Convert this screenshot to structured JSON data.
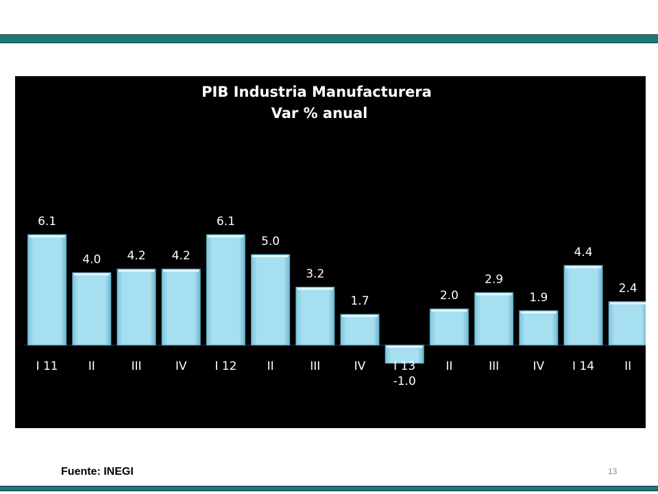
{
  "slide": {
    "source_label": "Fuente: INEGI",
    "page_number": "13"
  },
  "colors": {
    "accent_bar": "#1f7777",
    "chart_background": "#000000",
    "bar_fill": "#a6dff0",
    "text": "#ffffff"
  },
  "chart_data": {
    "type": "bar",
    "title": "PIB Industria Manufacturera",
    "subtitle": "Var % anual",
    "categories": [
      "I 11",
      "II",
      "III",
      "IV",
      "I 12",
      "II",
      "III",
      "IV",
      "I 13",
      "II",
      "III",
      "IV",
      "I 14",
      "II"
    ],
    "values": [
      6.1,
      4.0,
      4.2,
      4.2,
      6.1,
      5.0,
      3.2,
      1.7,
      -1.0,
      2.0,
      2.9,
      1.9,
      4.4,
      2.4
    ],
    "value_labels": [
      "6.1",
      "4.0",
      "4.2",
      "4.2",
      "6.1",
      "5.0",
      "3.2",
      "1.7",
      "-1.0",
      "2.0",
      "2.9",
      "1.9",
      "4.4",
      "2.4"
    ],
    "xlabel": "",
    "ylabel": "",
    "grid": false,
    "legend": "none"
  }
}
